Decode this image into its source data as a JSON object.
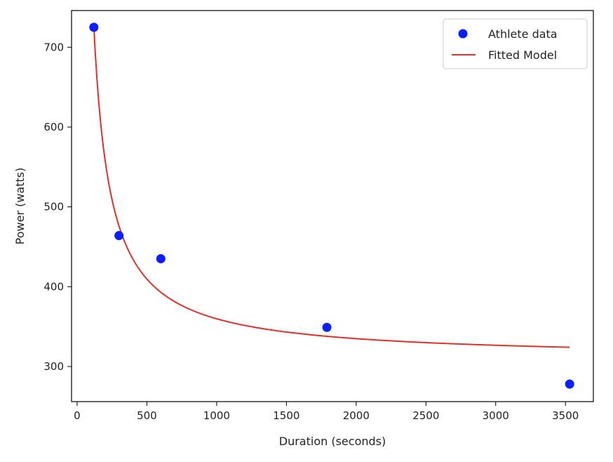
{
  "chart_data": {
    "type": "scatter",
    "title": "",
    "xlabel": "Duration (seconds)",
    "ylabel": "Power (watts)",
    "xlim": [
      -40,
      3700
    ],
    "ylim": [
      256,
      746
    ],
    "xticks": [
      0,
      500,
      1000,
      1500,
      2000,
      2500,
      3000,
      3500
    ],
    "yticks": [
      300,
      400,
      500,
      600,
      700
    ],
    "grid": false,
    "legend_position": "top-right",
    "series": [
      {
        "name": "Athlete data",
        "kind": "scatter",
        "color": "#0a1fff",
        "x": [
          120,
          300,
          600,
          1790,
          3530
        ],
        "y": [
          725,
          464,
          435,
          349,
          278
        ]
      },
      {
        "name": "Fitted Model",
        "kind": "line",
        "color": "#e03028",
        "model": {
          "form": "cp + w_prime / x",
          "cp": 310,
          "w_prime": 49800
        },
        "x_range": [
          120,
          3530
        ]
      }
    ]
  }
}
